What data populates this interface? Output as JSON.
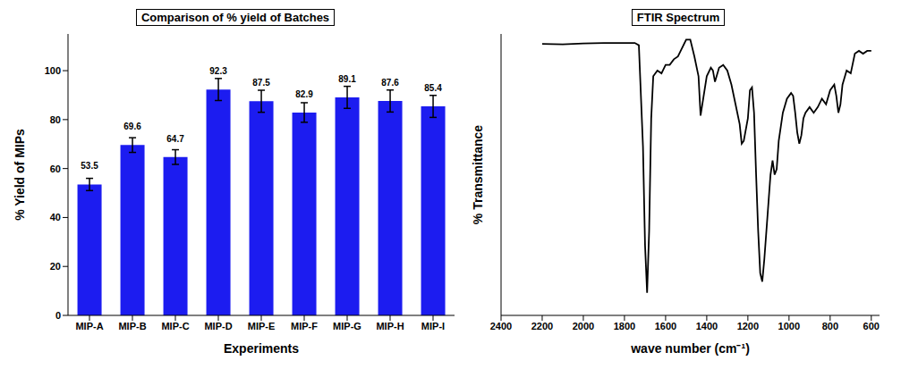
{
  "chart_data": [
    {
      "type": "bar",
      "title": "Comparison of % yield of Batches",
      "x_label": "Experiments",
      "y_label": "% Yield of MIPs",
      "categories": [
        "MIP-A",
        "MIP-B",
        "MIP-C",
        "MIP-D",
        "MIP-E",
        "MIP-F",
        "MIP-G",
        "MIP-H",
        "MIP-I"
      ],
      "values": [
        53.5,
        69.6,
        64.7,
        92.3,
        87.5,
        82.9,
        89.1,
        87.6,
        85.4
      ],
      "errors": [
        2.5,
        3,
        3,
        4.5,
        4.5,
        4,
        4.5,
        4.5,
        4.5
      ],
      "color": "#1c1cf0",
      "ylim": [
        0,
        115
      ],
      "yticks": [
        0,
        20,
        40,
        60,
        80,
        100
      ],
      "data_labels": true
    },
    {
      "type": "line",
      "title": "FTIR Spectrum",
      "x_label": "wave number (cm⁻¹)",
      "y_label": "% Transmittance",
      "x": [
        2200,
        2100,
        2000,
        1900,
        1800,
        1750,
        1730,
        1710,
        1700,
        1690,
        1680,
        1670,
        1660,
        1640,
        1620,
        1600,
        1580,
        1560,
        1540,
        1500,
        1480,
        1460,
        1440,
        1430,
        1400,
        1380,
        1370,
        1360,
        1340,
        1320,
        1300,
        1280,
        1260,
        1240,
        1230,
        1220,
        1200,
        1190,
        1180,
        1170,
        1160,
        1150,
        1140,
        1130,
        1120,
        1110,
        1100,
        1090,
        1080,
        1070,
        1060,
        1050,
        1040,
        1030,
        1010,
        990,
        980,
        970,
        960,
        950,
        940,
        930,
        920,
        900,
        880,
        860,
        840,
        820,
        800,
        780,
        770,
        760,
        750,
        740,
        720,
        700,
        680,
        660,
        640,
        620,
        600
      ],
      "values": [
        96.5,
        96.3,
        96.6,
        96.8,
        96.8,
        96.8,
        96,
        60,
        25,
        8,
        30,
        70,
        85,
        87,
        86,
        89,
        89,
        91,
        92,
        98,
        98,
        92,
        85,
        71,
        85,
        88,
        87,
        83,
        88,
        89,
        87,
        82,
        75,
        68,
        61,
        62,
        70,
        80,
        81,
        72,
        50,
        30,
        15,
        12,
        20,
        30,
        40,
        50,
        55,
        50,
        52,
        62,
        67,
        72,
        77,
        79,
        78,
        72,
        65,
        61,
        64,
        70,
        72,
        74,
        72,
        74,
        77,
        75,
        80,
        82,
        78,
        72,
        75,
        82,
        87,
        86,
        93,
        94,
        93,
        94,
        94
      ],
      "color": "#000000",
      "xlim": [
        2400,
        560
      ],
      "xticks": [
        2400,
        2200,
        2000,
        1800,
        1600,
        1400,
        1200,
        1000,
        800,
        600
      ],
      "ylim": [
        0,
        100
      ],
      "yticks": [],
      "tick_labels": "x"
    }
  ]
}
